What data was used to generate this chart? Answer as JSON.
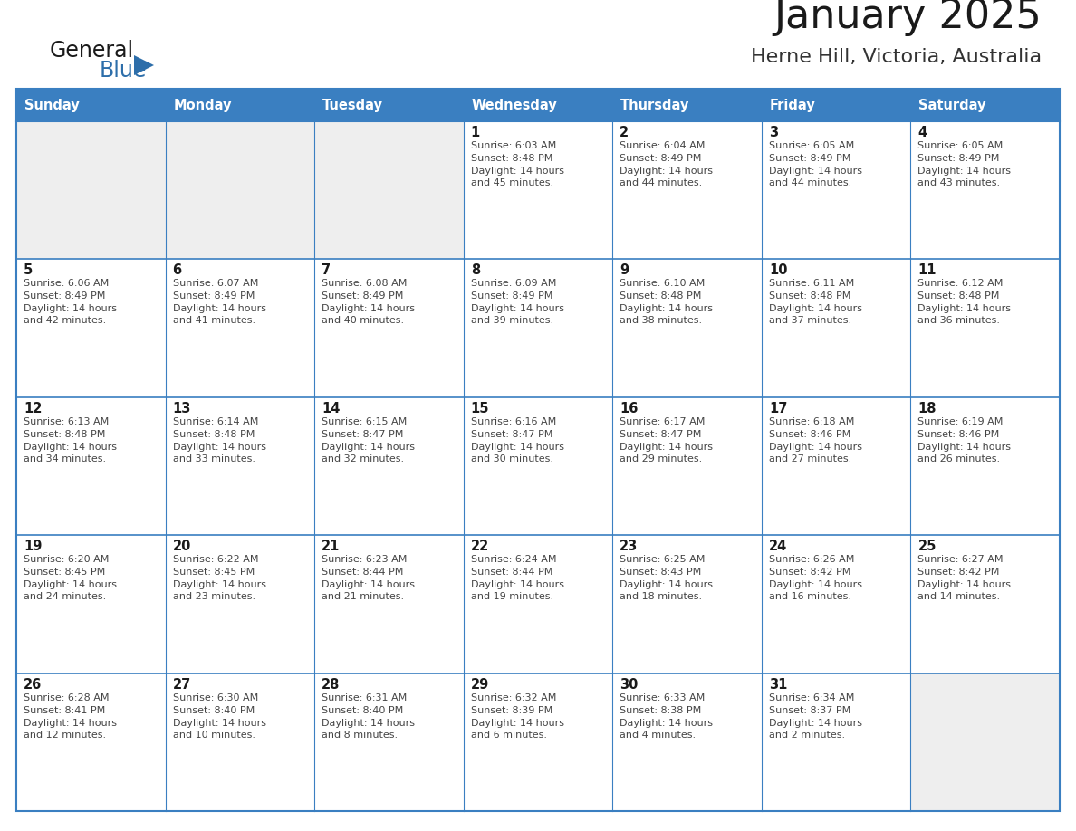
{
  "title": "January 2025",
  "subtitle": "Herne Hill, Victoria, Australia",
  "days_of_week": [
    "Sunday",
    "Monday",
    "Tuesday",
    "Wednesday",
    "Thursday",
    "Friday",
    "Saturday"
  ],
  "header_bg": "#3a7fc1",
  "header_text": "#ffffff",
  "cell_bg_light": "#eeeeee",
  "cell_bg_white": "#ffffff",
  "border_color": "#3a7fc1",
  "title_color": "#1a1a1a",
  "subtitle_color": "#333333",
  "day_num_color": "#1a1a1a",
  "cell_text_color": "#444444",
  "logo_general_color": "#1a1a1a",
  "logo_blue_color": "#2d6eaa",
  "weeks": [
    [
      {
        "date": "",
        "sunrise": "",
        "sunset": "",
        "daylight": ""
      },
      {
        "date": "",
        "sunrise": "",
        "sunset": "",
        "daylight": ""
      },
      {
        "date": "",
        "sunrise": "",
        "sunset": "",
        "daylight": ""
      },
      {
        "date": "1",
        "sunrise": "6:03 AM",
        "sunset": "8:48 PM",
        "daylight": "14 hours\nand 45 minutes."
      },
      {
        "date": "2",
        "sunrise": "6:04 AM",
        "sunset": "8:49 PM",
        "daylight": "14 hours\nand 44 minutes."
      },
      {
        "date": "3",
        "sunrise": "6:05 AM",
        "sunset": "8:49 PM",
        "daylight": "14 hours\nand 44 minutes."
      },
      {
        "date": "4",
        "sunrise": "6:05 AM",
        "sunset": "8:49 PM",
        "daylight": "14 hours\nand 43 minutes."
      }
    ],
    [
      {
        "date": "5",
        "sunrise": "6:06 AM",
        "sunset": "8:49 PM",
        "daylight": "14 hours\nand 42 minutes."
      },
      {
        "date": "6",
        "sunrise": "6:07 AM",
        "sunset": "8:49 PM",
        "daylight": "14 hours\nand 41 minutes."
      },
      {
        "date": "7",
        "sunrise": "6:08 AM",
        "sunset": "8:49 PM",
        "daylight": "14 hours\nand 40 minutes."
      },
      {
        "date": "8",
        "sunrise": "6:09 AM",
        "sunset": "8:49 PM",
        "daylight": "14 hours\nand 39 minutes."
      },
      {
        "date": "9",
        "sunrise": "6:10 AM",
        "sunset": "8:48 PM",
        "daylight": "14 hours\nand 38 minutes."
      },
      {
        "date": "10",
        "sunrise": "6:11 AM",
        "sunset": "8:48 PM",
        "daylight": "14 hours\nand 37 minutes."
      },
      {
        "date": "11",
        "sunrise": "6:12 AM",
        "sunset": "8:48 PM",
        "daylight": "14 hours\nand 36 minutes."
      }
    ],
    [
      {
        "date": "12",
        "sunrise": "6:13 AM",
        "sunset": "8:48 PM",
        "daylight": "14 hours\nand 34 minutes."
      },
      {
        "date": "13",
        "sunrise": "6:14 AM",
        "sunset": "8:48 PM",
        "daylight": "14 hours\nand 33 minutes."
      },
      {
        "date": "14",
        "sunrise": "6:15 AM",
        "sunset": "8:47 PM",
        "daylight": "14 hours\nand 32 minutes."
      },
      {
        "date": "15",
        "sunrise": "6:16 AM",
        "sunset": "8:47 PM",
        "daylight": "14 hours\nand 30 minutes."
      },
      {
        "date": "16",
        "sunrise": "6:17 AM",
        "sunset": "8:47 PM",
        "daylight": "14 hours\nand 29 minutes."
      },
      {
        "date": "17",
        "sunrise": "6:18 AM",
        "sunset": "8:46 PM",
        "daylight": "14 hours\nand 27 minutes."
      },
      {
        "date": "18",
        "sunrise": "6:19 AM",
        "sunset": "8:46 PM",
        "daylight": "14 hours\nand 26 minutes."
      }
    ],
    [
      {
        "date": "19",
        "sunrise": "6:20 AM",
        "sunset": "8:45 PM",
        "daylight": "14 hours\nand 24 minutes."
      },
      {
        "date": "20",
        "sunrise": "6:22 AM",
        "sunset": "8:45 PM",
        "daylight": "14 hours\nand 23 minutes."
      },
      {
        "date": "21",
        "sunrise": "6:23 AM",
        "sunset": "8:44 PM",
        "daylight": "14 hours\nand 21 minutes."
      },
      {
        "date": "22",
        "sunrise": "6:24 AM",
        "sunset": "8:44 PM",
        "daylight": "14 hours\nand 19 minutes."
      },
      {
        "date": "23",
        "sunrise": "6:25 AM",
        "sunset": "8:43 PM",
        "daylight": "14 hours\nand 18 minutes."
      },
      {
        "date": "24",
        "sunrise": "6:26 AM",
        "sunset": "8:42 PM",
        "daylight": "14 hours\nand 16 minutes."
      },
      {
        "date": "25",
        "sunrise": "6:27 AM",
        "sunset": "8:42 PM",
        "daylight": "14 hours\nand 14 minutes."
      }
    ],
    [
      {
        "date": "26",
        "sunrise": "6:28 AM",
        "sunset": "8:41 PM",
        "daylight": "14 hours\nand 12 minutes."
      },
      {
        "date": "27",
        "sunrise": "6:30 AM",
        "sunset": "8:40 PM",
        "daylight": "14 hours\nand 10 minutes."
      },
      {
        "date": "28",
        "sunrise": "6:31 AM",
        "sunset": "8:40 PM",
        "daylight": "14 hours\nand 8 minutes."
      },
      {
        "date": "29",
        "sunrise": "6:32 AM",
        "sunset": "8:39 PM",
        "daylight": "14 hours\nand 6 minutes."
      },
      {
        "date": "30",
        "sunrise": "6:33 AM",
        "sunset": "8:38 PM",
        "daylight": "14 hours\nand 4 minutes."
      },
      {
        "date": "31",
        "sunrise": "6:34 AM",
        "sunset": "8:37 PM",
        "daylight": "14 hours\nand 2 minutes."
      },
      {
        "date": "",
        "sunrise": "",
        "sunset": "",
        "daylight": ""
      }
    ]
  ]
}
